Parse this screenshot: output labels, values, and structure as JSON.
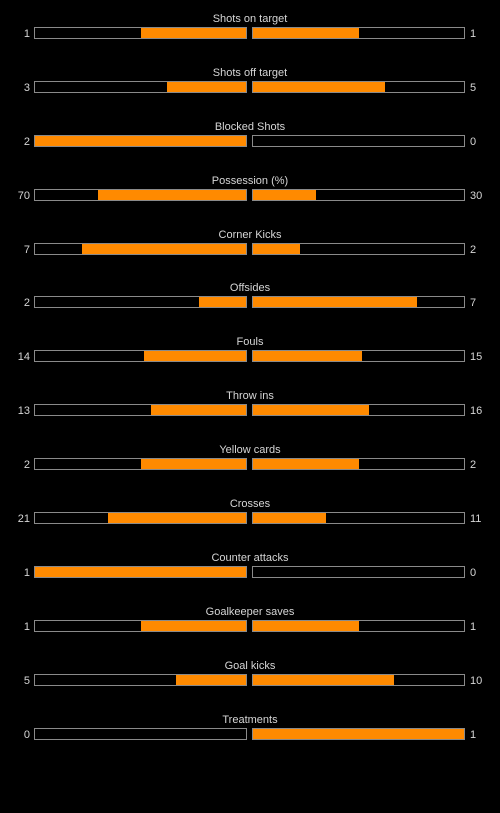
{
  "colors": {
    "background": "#000000",
    "bar_fill": "#ff8a00",
    "bar_border": "#8a8a8a",
    "text": "#d6d6d6"
  },
  "stats": [
    {
      "label": "Shots on target",
      "home": "1",
      "away": "1"
    },
    {
      "label": "Shots off target",
      "home": "3",
      "away": "5"
    },
    {
      "label": "Blocked Shots",
      "home": "2",
      "away": "0"
    },
    {
      "label": "Possession (%)",
      "home": "70",
      "away": "30"
    },
    {
      "label": "Corner Kicks",
      "home": "7",
      "away": "2"
    },
    {
      "label": "Offsides",
      "home": "2",
      "away": "7"
    },
    {
      "label": "Fouls",
      "home": "14",
      "away": "15"
    },
    {
      "label": "Throw ins",
      "home": "13",
      "away": "16"
    },
    {
      "label": "Yellow cards",
      "home": "2",
      "away": "2"
    },
    {
      "label": "Crosses",
      "home": "21",
      "away": "11"
    },
    {
      "label": "Counter attacks",
      "home": "1",
      "away": "0"
    },
    {
      "label": "Goalkeeper saves",
      "home": "1",
      "away": "1"
    },
    {
      "label": "Goal kicks",
      "home": "5",
      "away": "10"
    },
    {
      "label": "Treatments",
      "home": "0",
      "away": "1"
    }
  ]
}
